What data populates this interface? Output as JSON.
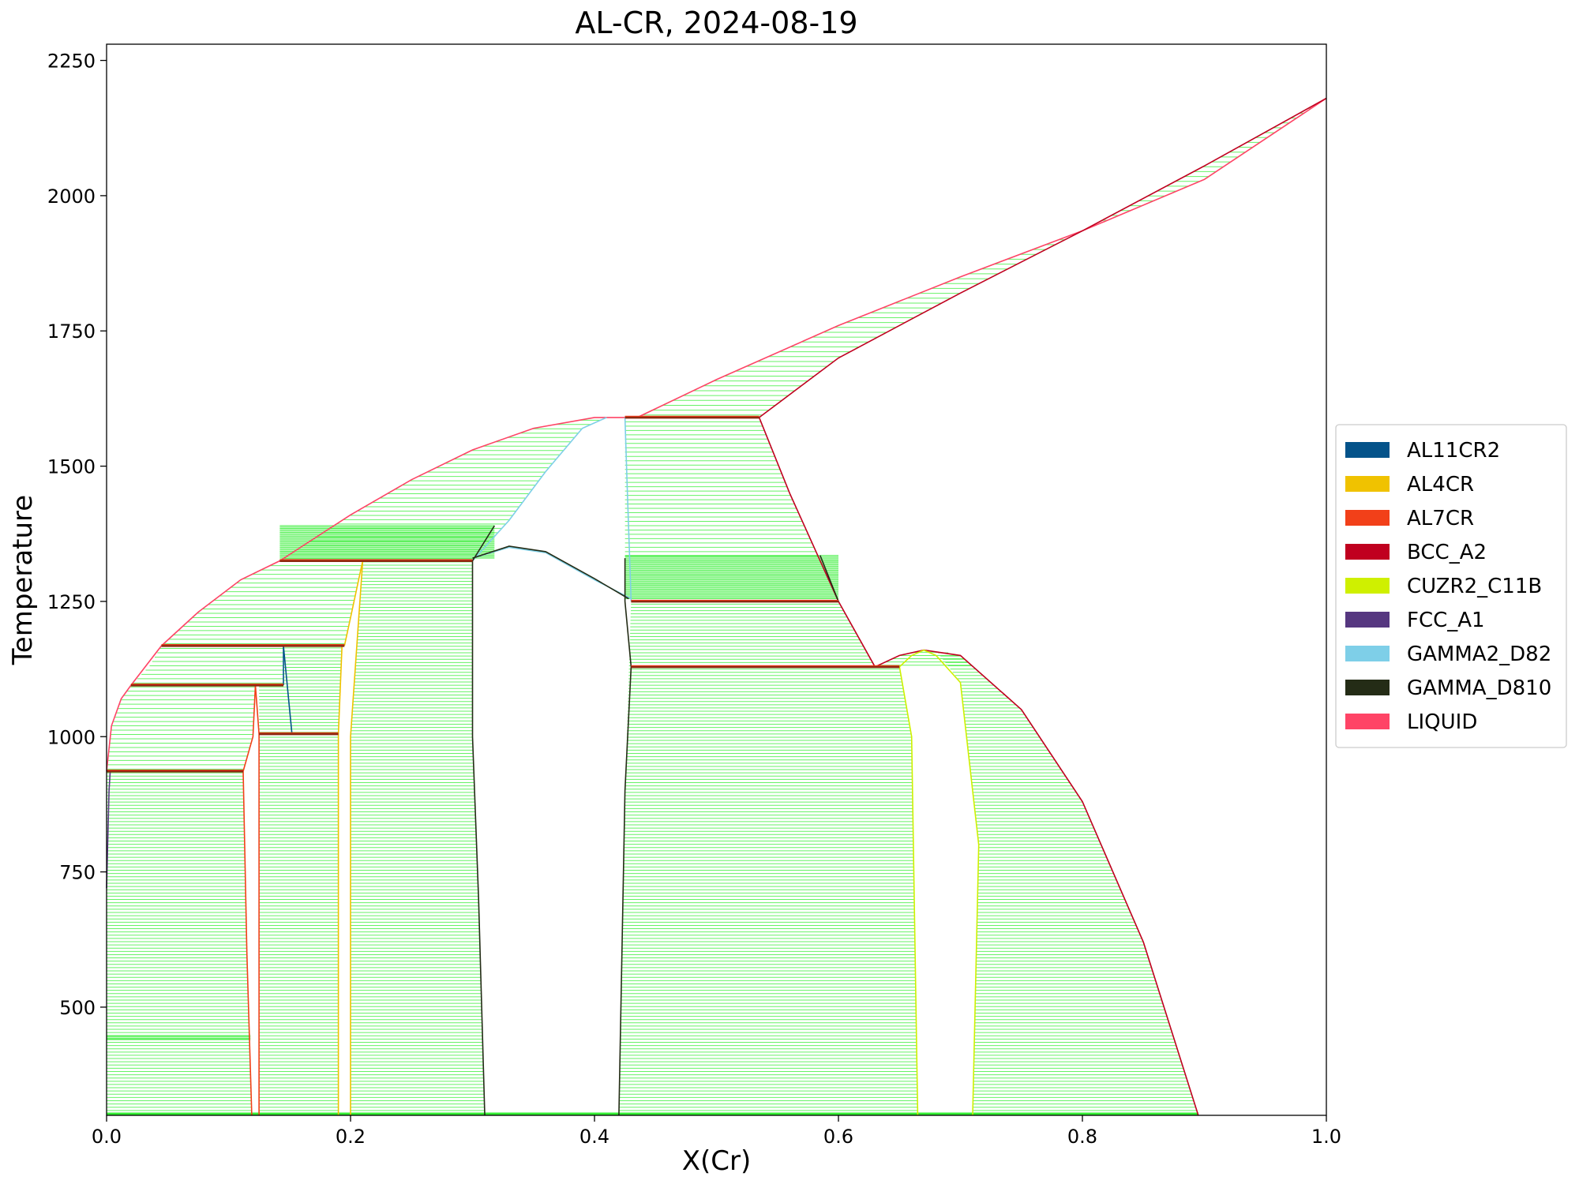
{
  "chart_data": {
    "type": "phase_diagram",
    "title": "AL-CR, 2024-08-19",
    "xlabel": "X(Cr)",
    "ylabel": "Temperature",
    "xlim": [
      0.0,
      1.0
    ],
    "ylim": [
      300,
      2280
    ],
    "xticks": [
      {
        "value": 0.0,
        "label": "0.0"
      },
      {
        "value": 0.2,
        "label": "0.2"
      },
      {
        "value": 0.4,
        "label": "0.4"
      },
      {
        "value": 0.6,
        "label": "0.6"
      },
      {
        "value": 0.8,
        "label": "0.8"
      },
      {
        "value": 1.0,
        "label": "1.0"
      }
    ],
    "yticks": [
      {
        "value": 500,
        "label": "500"
      },
      {
        "value": 750,
        "label": "750"
      },
      {
        "value": 1000,
        "label": "1000"
      },
      {
        "value": 1250,
        "label": "1250"
      },
      {
        "value": 1500,
        "label": "1500"
      },
      {
        "value": 1750,
        "label": "1750"
      },
      {
        "value": 2000,
        "label": "2000"
      },
      {
        "value": 2250,
        "label": "2250"
      }
    ],
    "legend_position": "right",
    "legend": [
      {
        "name": "AL11CR2",
        "color": "#04538a"
      },
      {
        "name": "AL4CR",
        "color": "#f0c200"
      },
      {
        "name": "AL7CR",
        "color": "#f24019"
      },
      {
        "name": "BCC_A2",
        "color": "#c0001f"
      },
      {
        "name": "CUZR2_C11B",
        "color": "#cff000"
      },
      {
        "name": "FCC_A1",
        "color": "#563780"
      },
      {
        "name": "GAMMA2_D82",
        "color": "#7ecfe8"
      },
      {
        "name": "GAMMA_D810",
        "color": "#242c16"
      },
      {
        "name": "LIQUID",
        "color": "#ff4466"
      }
    ],
    "tieline_color": "#33ee33",
    "two_phase_regions": [
      {
        "name": "liquid-bcc-high",
        "y_step": 9,
        "left": [
          [
            0.435,
            1590
          ],
          [
            0.5,
            1660
          ],
          [
            0.6,
            1760
          ],
          [
            0.7,
            1850
          ],
          [
            0.8,
            1935
          ],
          [
            0.9,
            2030
          ],
          [
            1.0,
            2180
          ]
        ],
        "right": [
          [
            0.535,
            1590
          ],
          [
            0.6,
            1700
          ],
          [
            0.7,
            1820
          ],
          [
            0.8,
            1935
          ],
          [
            0.9,
            2055
          ],
          [
            1.0,
            2180
          ]
        ]
      },
      {
        "name": "liquid-gamma2-left",
        "y_step": 8,
        "left": [
          [
            0.142,
            1325
          ],
          [
            0.2,
            1410
          ],
          [
            0.25,
            1475
          ],
          [
            0.3,
            1530
          ],
          [
            0.35,
            1570
          ],
          [
            0.4,
            1590
          ]
        ],
        "right": [
          [
            0.3,
            1325
          ],
          [
            0.33,
            1400
          ],
          [
            0.36,
            1490
          ],
          [
            0.39,
            1570
          ],
          [
            0.41,
            1590
          ]
        ]
      },
      {
        "name": "liquid-al4cr",
        "y_step": 8,
        "left": [
          [
            0.045,
            1168
          ],
          [
            0.075,
            1230
          ],
          [
            0.11,
            1290
          ],
          [
            0.142,
            1325
          ]
        ],
        "right": [
          [
            0.195,
            1168
          ],
          [
            0.2,
            1220
          ],
          [
            0.21,
            1325
          ]
        ]
      },
      {
        "name": "liquid-al11cr2",
        "y_step": 8,
        "left": [
          [
            0.02,
            1095
          ],
          [
            0.035,
            1130
          ],
          [
            0.045,
            1168
          ]
        ],
        "right": [
          [
            0.145,
            1095
          ],
          [
            0.145,
            1168
          ]
        ]
      },
      {
        "name": "liquid-al7cr",
        "y_step": 8,
        "left": [
          [
            0.0,
            936
          ],
          [
            0.004,
            1020
          ],
          [
            0.012,
            1070
          ],
          [
            0.02,
            1095
          ]
        ],
        "right": [
          [
            0.112,
            936
          ],
          [
            0.12,
            1000
          ],
          [
            0.122,
            1095
          ]
        ]
      },
      {
        "name": "al-al7cr",
        "y_step": 6,
        "left": [
          [
            0.0,
            300
          ],
          [
            0.0,
            936
          ]
        ],
        "right": [
          [
            0.119,
            300
          ],
          [
            0.115,
            600
          ],
          [
            0.112,
            936
          ]
        ]
      },
      {
        "name": "al7cr-al11cr2",
        "y_step": 6,
        "left": [
          [
            0.125,
            300
          ],
          [
            0.125,
            1005
          ]
        ],
        "right": [
          [
            0.19,
            300
          ],
          [
            0.19,
            1005
          ]
        ]
      },
      {
        "name": "al11cr2-al4cr",
        "y_step": 6,
        "left": [
          [
            0.125,
            1005
          ],
          [
            0.125,
            1095
          ],
          [
            0.145,
            1095
          ],
          [
            0.145,
            1168
          ]
        ],
        "right": [
          [
            0.19,
            1005
          ],
          [
            0.193,
            1168
          ]
        ]
      },
      {
        "name": "al4cr-gamma",
        "y_step": 6,
        "left": [
          [
            0.2,
            300
          ],
          [
            0.2,
            1000
          ],
          [
            0.21,
            1325
          ]
        ],
        "right": [
          [
            0.31,
            300
          ],
          [
            0.305,
            700
          ],
          [
            0.3,
            1000
          ],
          [
            0.3,
            1325
          ]
        ]
      },
      {
        "name": "gamma-bcc-region",
        "y_step": 8,
        "left": [
          [
            0.425,
            1330
          ],
          [
            0.425,
            1590
          ]
        ],
        "right": [
          [
            0.535,
            1590
          ],
          [
            0.56,
            1450
          ],
          [
            0.6,
            1250
          ]
        ]
      },
      {
        "name": "gamma-bcc-lower",
        "y_step": 6,
        "left": [
          [
            0.42,
            300
          ],
          [
            0.425,
            900
          ],
          [
            0.43,
            1250
          ]
        ],
        "right": [
          [
            0.665,
            300
          ],
          [
            0.66,
            1000
          ],
          [
            0.65,
            1129
          ],
          [
            0.63,
            1129
          ],
          [
            0.6,
            1250
          ]
        ]
      },
      {
        "name": "liquid-bcc-hump",
        "y_step": 6,
        "left": [
          [
            0.63,
            1129
          ],
          [
            0.65,
            1150
          ],
          [
            0.67,
            1160
          ]
        ],
        "right": [
          [
            0.67,
            1160
          ],
          [
            0.7,
            1150
          ],
          [
            0.75,
            1050
          ],
          [
            0.8,
            880
          ],
          [
            0.85,
            620
          ],
          [
            0.895,
            300
          ]
        ]
      },
      {
        "name": "bcc-cuzr2",
        "y_step": 6,
        "left": [
          [
            0.71,
            300
          ],
          [
            0.715,
            800
          ],
          [
            0.7,
            1100
          ],
          [
            0.68,
            1160
          ]
        ],
        "right": [
          [
            0.895,
            300
          ],
          [
            0.85,
            620
          ],
          [
            0.8,
            880
          ],
          [
            0.75,
            1050
          ],
          [
            0.7,
            1150
          ],
          [
            0.68,
            1160
          ]
        ]
      }
    ],
    "phase_boundaries": [
      {
        "phase": "LIQUID",
        "points": [
          [
            0.0,
            936
          ],
          [
            0.004,
            1020
          ],
          [
            0.012,
            1070
          ],
          [
            0.02,
            1095
          ],
          [
            0.045,
            1168
          ],
          [
            0.075,
            1230
          ],
          [
            0.11,
            1290
          ],
          [
            0.142,
            1325
          ],
          [
            0.2,
            1410
          ],
          [
            0.25,
            1475
          ],
          [
            0.3,
            1530
          ],
          [
            0.35,
            1570
          ],
          [
            0.4,
            1590
          ],
          [
            0.435,
            1590
          ],
          [
            0.5,
            1660
          ],
          [
            0.6,
            1760
          ],
          [
            0.7,
            1850
          ],
          [
            0.8,
            1935
          ],
          [
            0.9,
            2030
          ],
          [
            1.0,
            2180
          ]
        ]
      },
      {
        "phase": "BCC_A2",
        "points": [
          [
            0.535,
            1590
          ],
          [
            0.6,
            1700
          ],
          [
            0.7,
            1820
          ],
          [
            0.8,
            1935
          ],
          [
            0.9,
            2055
          ],
          [
            1.0,
            2180
          ]
        ]
      },
      {
        "phase": "BCC_A2",
        "points": [
          [
            0.535,
            1590
          ],
          [
            0.56,
            1450
          ],
          [
            0.6,
            1250
          ],
          [
            0.63,
            1129
          ]
        ]
      },
      {
        "phase": "BCC_A2",
        "points": [
          [
            0.63,
            1129
          ],
          [
            0.65,
            1150
          ],
          [
            0.67,
            1160
          ],
          [
            0.7,
            1150
          ],
          [
            0.75,
            1050
          ],
          [
            0.8,
            880
          ],
          [
            0.85,
            620
          ],
          [
            0.895,
            300
          ]
        ]
      },
      {
        "phase": "GAMMA2_D82",
        "points": [
          [
            0.3,
            1325
          ],
          [
            0.33,
            1400
          ],
          [
            0.36,
            1490
          ],
          [
            0.39,
            1570
          ],
          [
            0.41,
            1590
          ]
        ]
      },
      {
        "phase": "GAMMA2_D82",
        "points": [
          [
            0.425,
            1590
          ],
          [
            0.427,
            1450
          ],
          [
            0.43,
            1250
          ]
        ]
      },
      {
        "phase": "GAMMA2_D82",
        "points": [
          [
            0.3,
            1330
          ],
          [
            0.33,
            1350
          ],
          [
            0.36,
            1340
          ],
          [
            0.4,
            1290
          ],
          [
            0.43,
            1255
          ]
        ]
      },
      {
        "phase": "GAMMA_D810",
        "points": [
          [
            0.3,
            1330
          ],
          [
            0.33,
            1352
          ],
          [
            0.36,
            1342
          ],
          [
            0.4,
            1292
          ],
          [
            0.428,
            1255
          ]
        ]
      },
      {
        "phase": "GAMMA_D810",
        "points": [
          [
            0.3,
            1325
          ],
          [
            0.3,
            1000
          ],
          [
            0.305,
            700
          ],
          [
            0.31,
            300
          ]
        ]
      },
      {
        "phase": "GAMMA_D810",
        "points": [
          [
            0.3,
            1325
          ],
          [
            0.318,
            1390
          ]
        ]
      },
      {
        "phase": "GAMMA_D810",
        "points": [
          [
            0.425,
            1330
          ],
          [
            0.425,
            1250
          ],
          [
            0.43,
            1129
          ],
          [
            0.425,
            900
          ],
          [
            0.42,
            300
          ]
        ]
      },
      {
        "phase": "GAMMA_D810",
        "points": [
          [
            0.585,
            1335
          ],
          [
            0.6,
            1250
          ]
        ]
      },
      {
        "phase": "AL4CR",
        "points": [
          [
            0.195,
            1168
          ],
          [
            0.2,
            1220
          ],
          [
            0.21,
            1325
          ]
        ]
      },
      {
        "phase": "AL4CR",
        "points": [
          [
            0.21,
            1325
          ],
          [
            0.2,
            1000
          ],
          [
            0.2,
            300
          ]
        ]
      },
      {
        "phase": "AL4CR",
        "points": [
          [
            0.19,
            300
          ],
          [
            0.19,
            1005
          ],
          [
            0.193,
            1168
          ]
        ]
      },
      {
        "phase": "AL11CR2",
        "points": [
          [
            0.145,
            1095
          ],
          [
            0.145,
            1168
          ]
        ]
      },
      {
        "phase": "AL11CR2",
        "points": [
          [
            0.145,
            1168
          ],
          [
            0.152,
            1005
          ]
        ]
      },
      {
        "phase": "AL7CR",
        "points": [
          [
            0.112,
            936
          ],
          [
            0.12,
            1000
          ],
          [
            0.122,
            1095
          ]
        ]
      },
      {
        "phase": "AL7CR",
        "points": [
          [
            0.119,
            300
          ],
          [
            0.115,
            600
          ],
          [
            0.112,
            936
          ]
        ]
      },
      {
        "phase": "AL7CR",
        "points": [
          [
            0.122,
            1095
          ],
          [
            0.125,
            1005
          ],
          [
            0.125,
            300
          ]
        ]
      },
      {
        "phase": "CUZR2_C11B",
        "points": [
          [
            0.65,
            1129
          ],
          [
            0.66,
            1000
          ],
          [
            0.665,
            300
          ]
        ]
      },
      {
        "phase": "CUZR2_C11B",
        "points": [
          [
            0.65,
            1129
          ],
          [
            0.66,
            1150
          ],
          [
            0.67,
            1160
          ],
          [
            0.68,
            1150
          ],
          [
            0.7,
            1100
          ],
          [
            0.715,
            800
          ],
          [
            0.71,
            300
          ]
        ]
      },
      {
        "phase": "FCC_A1",
        "points": [
          [
            0.0,
            720
          ],
          [
            0.002,
            900
          ],
          [
            0.003,
            936
          ]
        ]
      }
    ],
    "invariant_lines": [
      {
        "y": 936,
        "x1": 0.0,
        "x2": 0.112
      },
      {
        "y": 1095,
        "x1": 0.02,
        "x2": 0.145
      },
      {
        "y": 1005,
        "x1": 0.125,
        "x2": 0.19
      },
      {
        "y": 1168,
        "x1": 0.045,
        "x2": 0.195
      },
      {
        "y": 1325,
        "x1": 0.142,
        "x2": 0.3
      },
      {
        "y": 1590,
        "x1": 0.425,
        "x2": 0.535
      },
      {
        "y": 1250,
        "x1": 0.43,
        "x2": 0.6
      },
      {
        "y": 1129,
        "x1": 0.43,
        "x2": 0.65
      }
    ],
    "dense_bands": [
      {
        "y1": 1330,
        "y2": 1390,
        "x1": 0.142,
        "x2": 0.318
      },
      {
        "y1": 1255,
        "y2": 1335,
        "x1": 0.425,
        "x2": 0.6
      },
      {
        "y1": 440,
        "y2": 448,
        "x1": 0.0,
        "x2": 0.118
      }
    ]
  }
}
